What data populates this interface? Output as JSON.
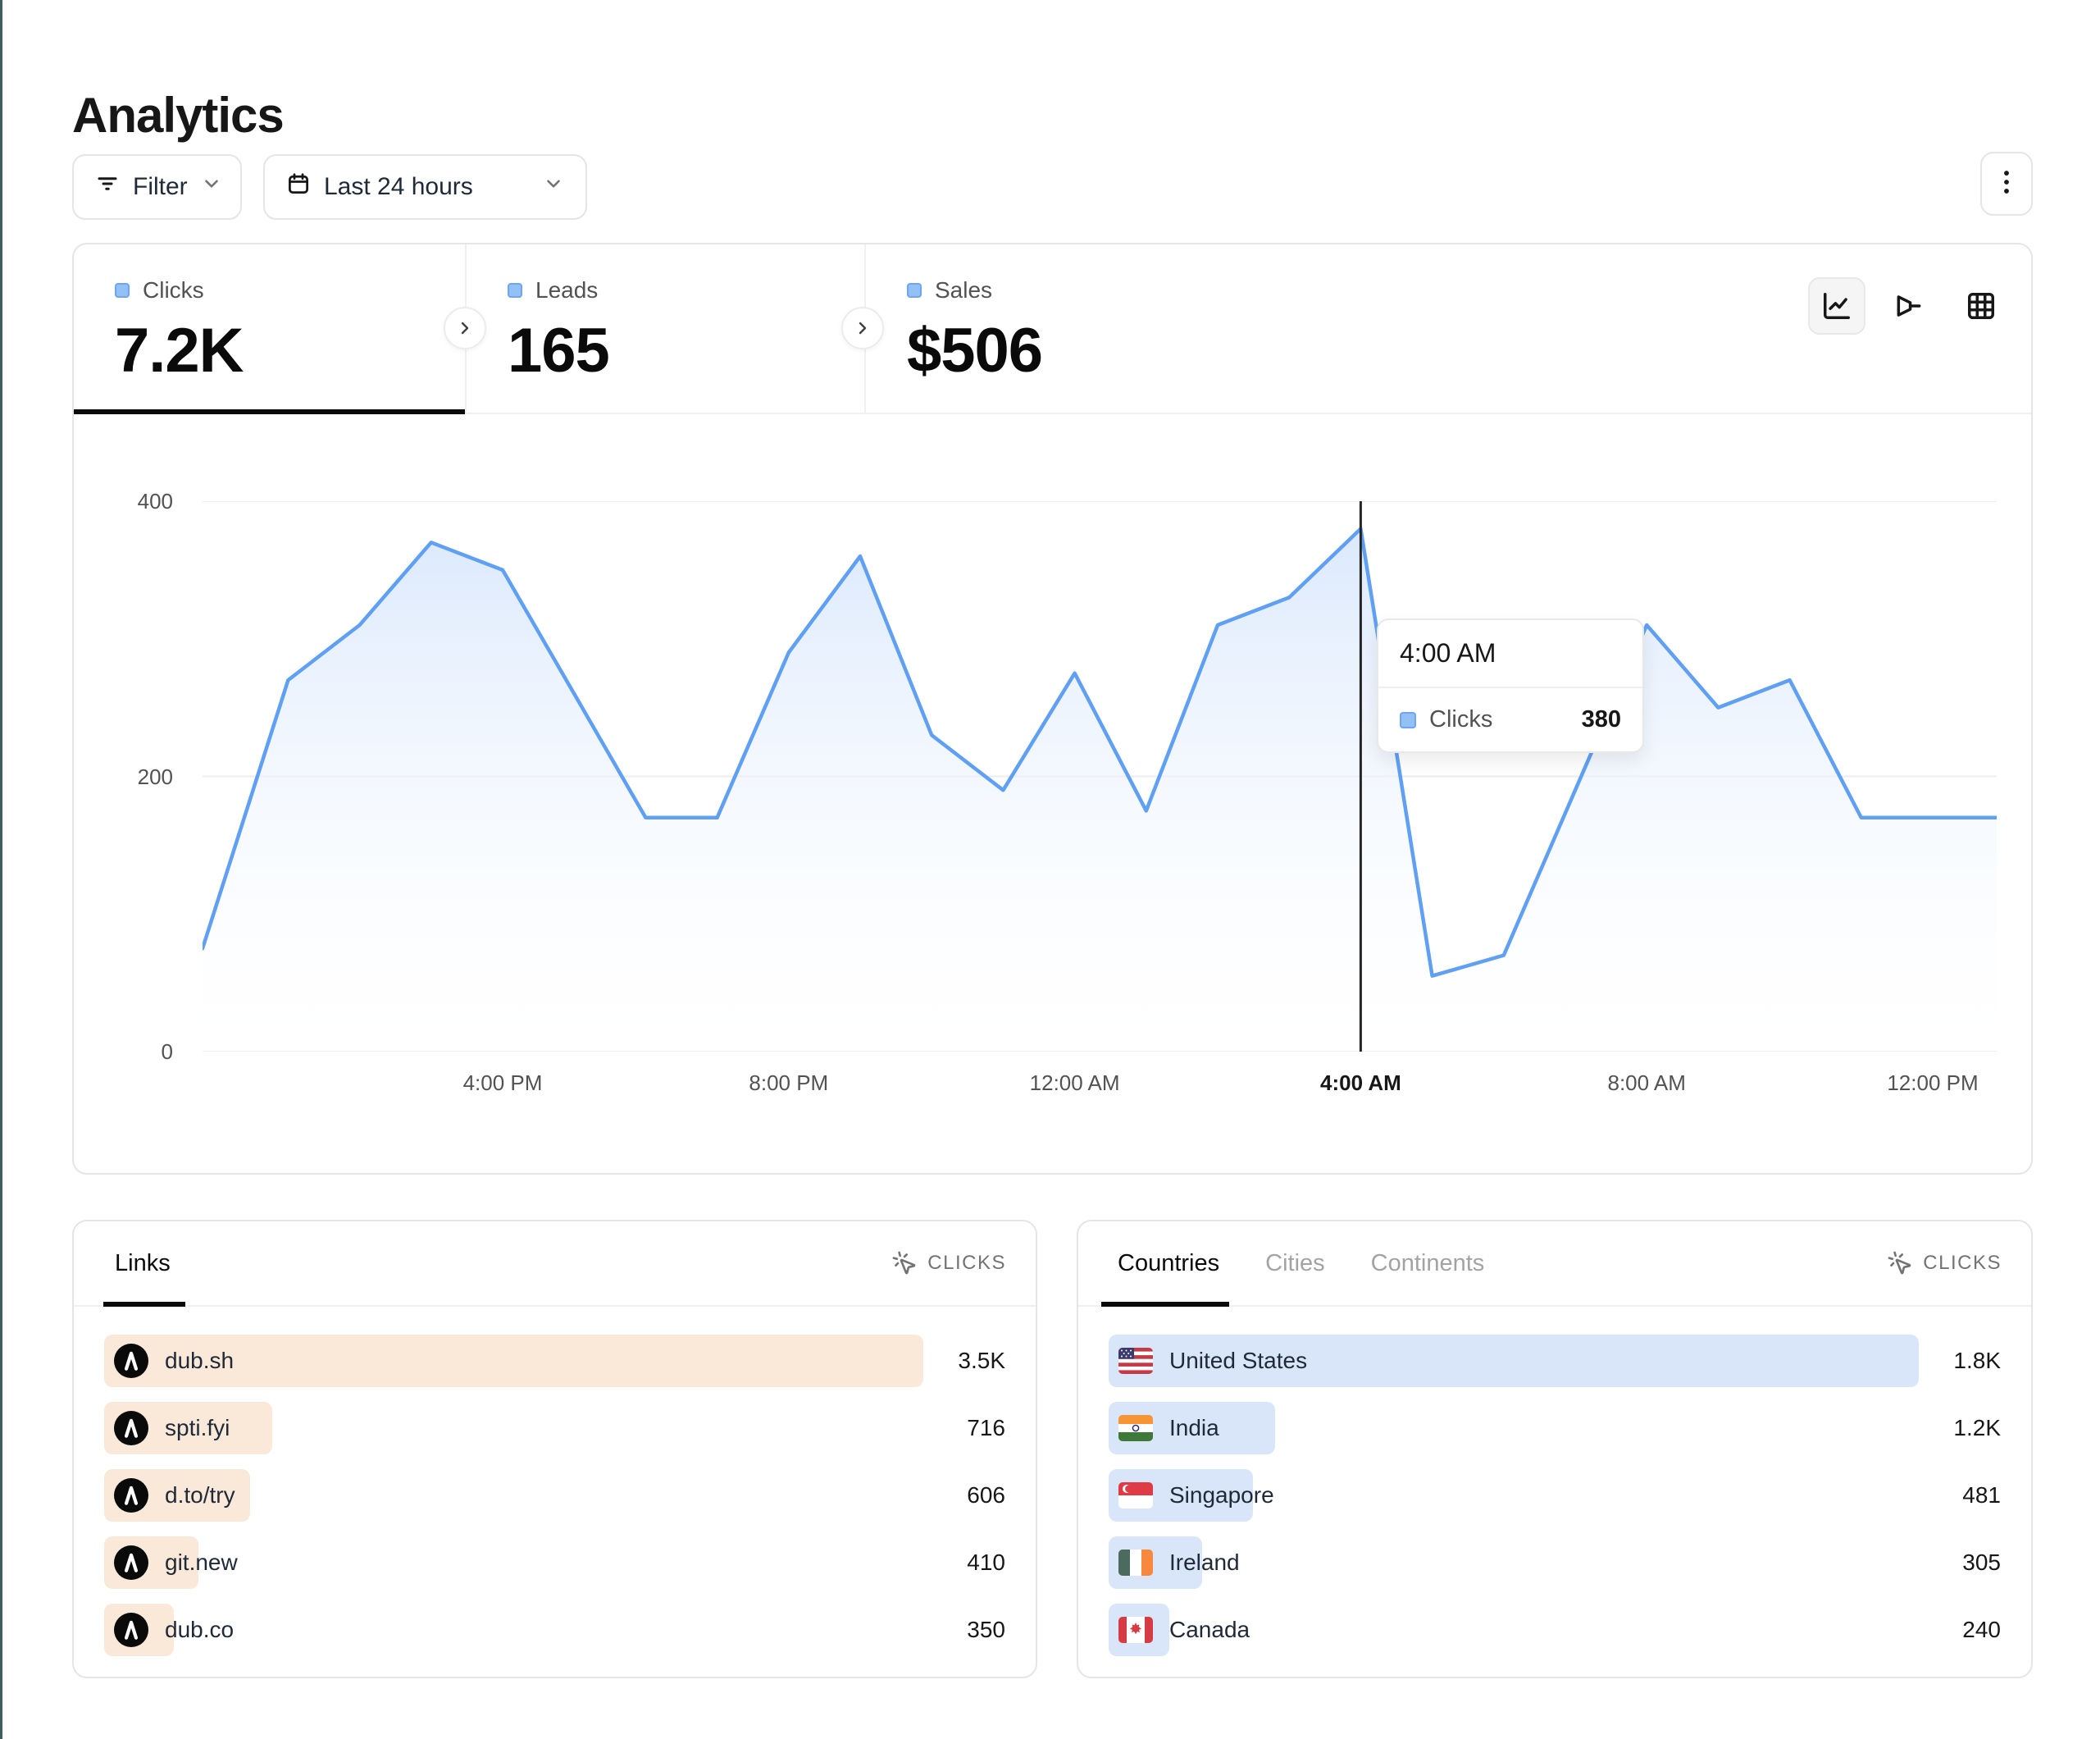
{
  "page": {
    "title": "Analytics"
  },
  "toolbar": {
    "filter": {
      "label": "Filter",
      "icon": "filter-lines-icon"
    },
    "date_range": {
      "label": "Last 24 hours",
      "icon": "calendar-icon"
    },
    "more": {
      "icon": "kebab-menu-icon"
    }
  },
  "stats_tabs": [
    {
      "label": "Clicks",
      "value": "7.2K",
      "active": true
    },
    {
      "label": "Leads",
      "value": "165",
      "active": false
    },
    {
      "label": "Sales",
      "value": "$506",
      "active": false
    }
  ],
  "chart_view_toggle": {
    "options": [
      "line-chart",
      "funnel-chart",
      "table"
    ],
    "active": "line-chart"
  },
  "chart_data": {
    "type": "area",
    "title": "Clicks over last 24 hours",
    "series": [
      {
        "name": "Clicks",
        "color": "#60a0f4",
        "values": [
          75,
          270,
          310,
          370,
          350,
          260,
          170,
          170,
          290,
          360,
          230,
          190,
          275,
          175,
          310,
          330,
          380,
          55,
          70,
          190,
          310,
          250,
          270,
          170,
          170
        ]
      }
    ],
    "x": [
      "12 PM",
      "1 PM",
      "2 PM",
      "3 PM",
      "4 PM",
      "5 PM",
      "6 PM",
      "7 PM",
      "8 PM",
      "9 PM",
      "10 PM",
      "11 PM",
      "12 AM",
      "1 AM",
      "2 AM",
      "3 AM",
      "4 AM",
      "5 AM",
      "6 AM",
      "7 AM",
      "8 AM",
      "9 AM",
      "10 AM",
      "11 AM",
      "12 PM"
    ],
    "xlabel": "",
    "ylabel": "",
    "ylim": [
      0,
      400
    ],
    "yticks": [
      0,
      200,
      400
    ],
    "xticks": [
      {
        "label": "4:00 PM",
        "hour": 4,
        "emphasized": false
      },
      {
        "label": "8:00 PM",
        "hour": 8,
        "emphasized": false
      },
      {
        "label": "12:00 AM",
        "hour": 12,
        "emphasized": false
      },
      {
        "label": "4:00 AM",
        "hour": 16,
        "emphasized": true
      },
      {
        "label": "8:00 AM",
        "hour": 20,
        "emphasized": false
      },
      {
        "label": "12:00 PM",
        "hour": 24,
        "emphasized": false
      }
    ],
    "grid": true,
    "legend_position": "none",
    "fill_top_color": "#d9e8fc",
    "fill_bottom_color": "#ffffff",
    "crosshair_index": 16
  },
  "tooltip": {
    "title": "4:00 AM",
    "series": "Clicks",
    "value": "380"
  },
  "links_panel": {
    "tab": "Links",
    "metric_label": "CLICKS",
    "metric_icon": "cursor-click-icon",
    "bar_color": "#fae9d8",
    "rows": [
      {
        "label": "dub.sh",
        "value": "3.5K",
        "bar_pct": 100,
        "icon": "dub-logo"
      },
      {
        "label": "spti.fyi",
        "value": "716",
        "bar_pct": 20.5,
        "icon": "dub-logo"
      },
      {
        "label": "d.to/try",
        "value": "606",
        "bar_pct": 17.8,
        "icon": "dub-logo"
      },
      {
        "label": "git.new",
        "value": "410",
        "bar_pct": 11.5,
        "icon": "dub-logo"
      },
      {
        "label": "dub.co",
        "value": "350",
        "bar_pct": 8.5,
        "icon": "dub-logo"
      }
    ]
  },
  "countries_panel": {
    "tabs": [
      "Countries",
      "Cities",
      "Continents"
    ],
    "active_tab": "Countries",
    "metric_label": "CLICKS",
    "metric_icon": "cursor-click-icon",
    "bar_color": "#d9e6fa",
    "rows": [
      {
        "label": "United States",
        "value": "1.8K",
        "bar_pct": 100,
        "flag": "us-flag"
      },
      {
        "label": "India",
        "value": "1.2K",
        "bar_pct": 20.5,
        "flag": "india-flag"
      },
      {
        "label": "Singapore",
        "value": "481",
        "bar_pct": 17.8,
        "flag": "singapore-flag"
      },
      {
        "label": "Ireland",
        "value": "305",
        "bar_pct": 11.5,
        "flag": "ireland-flag"
      },
      {
        "label": "Canada",
        "value": "240",
        "bar_pct": 7.5,
        "flag": "canada-flag"
      }
    ]
  },
  "colors": {
    "accent_blue": "#60a0f4",
    "chip_blue": "#92c1f7",
    "links_bar": "#fae9d8",
    "countries_bar": "#d9e6fa",
    "border": "#e5e5e5",
    "crosshair": "#262626",
    "page_edge": "#3f5e5c"
  }
}
